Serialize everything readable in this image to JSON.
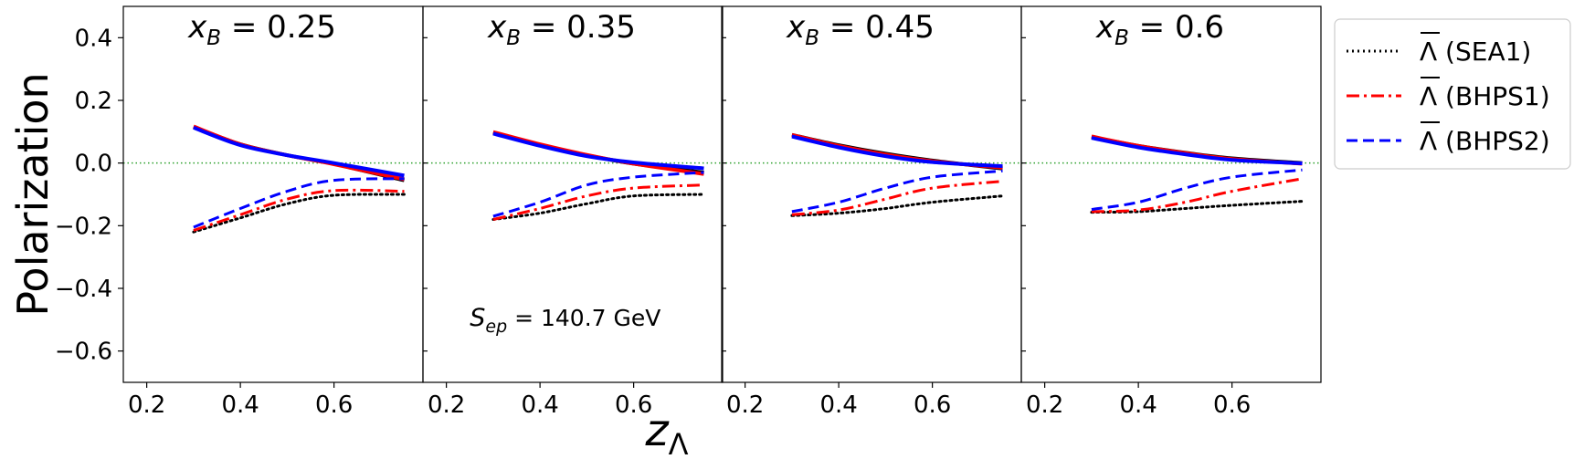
{
  "chart_data": {
    "type": "line",
    "ylabel": "Polarization",
    "xlabel": "z_Λ",
    "xlim": [
      0.15,
      0.79
    ],
    "ylim": [
      -0.7,
      0.5
    ],
    "xticks": [
      0.2,
      0.4,
      0.6
    ],
    "xtick_labels": [
      "0.2",
      "0.4",
      "0.6"
    ],
    "yticks": [
      -0.6,
      -0.4,
      -0.2,
      0.0,
      0.2,
      0.4
    ],
    "ytick_labels": [
      "−0.6",
      "−0.4",
      "−0.2",
      "0.0",
      "0.2",
      "0.4"
    ],
    "annotation": {
      "main": "S",
      "sub": "ep",
      "rest": " = 140.7 GeV",
      "panel": 1,
      "x": 0.25,
      "y": -0.52
    },
    "reference_line": {
      "y": 0.0,
      "color": "#2ca02c",
      "style": "dotted"
    },
    "legend": {
      "placement": "outside-right",
      "entries": [
        {
          "symbol": "Λ",
          "text": " (SEA1)",
          "color": "#000000",
          "style": "dotted"
        },
        {
          "symbol": "Λ",
          "text": " (BHPS1)",
          "color": "#ff0000",
          "style": "dashdot"
        },
        {
          "symbol": "Λ",
          "text": " (BHPS2)",
          "color": "#0000ff",
          "style": "dashed"
        }
      ]
    },
    "panels": [
      {
        "title_var": "x",
        "title_sub": "B",
        "title_value": " = 0.25",
        "x": [
          0.3,
          0.4,
          0.5,
          0.6,
          0.75
        ],
        "curves": [
          {
            "series": "SEA1 Λ",
            "color": "#000000",
            "style": "solid",
            "values": [
              0.115,
              0.06,
              0.025,
              -0.003,
              -0.055
            ]
          },
          {
            "series": "BHPS1 Λ",
            "color": "#ff0000",
            "style": "solid",
            "values": [
              0.117,
              0.06,
              0.025,
              -0.004,
              -0.052
            ]
          },
          {
            "series": "BHPS2 Λ",
            "color": "#0000ff",
            "style": "solid",
            "values": [
              0.113,
              0.057,
              0.025,
              0.0,
              -0.04
            ]
          },
          {
            "series": "SEA1 anti-Λ",
            "color": "#000000",
            "style": "dotted",
            "values": [
              -0.22,
              -0.175,
              -0.13,
              -0.103,
              -0.1
            ]
          },
          {
            "series": "BHPS1 anti-Λ",
            "color": "#ff0000",
            "style": "dashdot",
            "values": [
              -0.215,
              -0.165,
              -0.115,
              -0.088,
              -0.09
            ]
          },
          {
            "series": "BHPS2 anti-Λ",
            "color": "#0000ff",
            "style": "dashed",
            "values": [
              -0.205,
              -0.145,
              -0.09,
              -0.055,
              -0.05
            ]
          }
        ]
      },
      {
        "title_var": "x",
        "title_sub": "B",
        "title_value": " = 0.35",
        "x": [
          0.3,
          0.4,
          0.5,
          0.6,
          0.75
        ],
        "curves": [
          {
            "series": "SEA1 Λ",
            "color": "#000000",
            "style": "solid",
            "values": [
              0.097,
              0.058,
              0.025,
              -0.002,
              -0.03
            ]
          },
          {
            "series": "BHPS1 Λ",
            "color": "#ff0000",
            "style": "solid",
            "values": [
              0.099,
              0.06,
              0.026,
              -0.002,
              -0.035
            ]
          },
          {
            "series": "BHPS2 Λ",
            "color": "#0000ff",
            "style": "solid",
            "values": [
              0.094,
              0.055,
              0.022,
              0.002,
              -0.017
            ]
          },
          {
            "series": "SEA1 anti-Λ",
            "color": "#000000",
            "style": "dotted",
            "values": [
              -0.18,
              -0.16,
              -0.13,
              -0.105,
              -0.1
            ]
          },
          {
            "series": "BHPS1 anti-Λ",
            "color": "#ff0000",
            "style": "dashdot",
            "values": [
              -0.18,
              -0.145,
              -0.105,
              -0.08,
              -0.07
            ]
          },
          {
            "series": "BHPS2 anti-Λ",
            "color": "#0000ff",
            "style": "dashed",
            "values": [
              -0.17,
              -0.125,
              -0.07,
              -0.045,
              -0.03
            ]
          }
        ]
      },
      {
        "title_var": "x",
        "title_sub": "B",
        "title_value": " = 0.45",
        "x": [
          0.3,
          0.4,
          0.5,
          0.6,
          0.75
        ],
        "curves": [
          {
            "series": "SEA1 Λ",
            "color": "#000000",
            "style": "solid",
            "values": [
              0.09,
              0.057,
              0.03,
              0.008,
              -0.018
            ]
          },
          {
            "series": "BHPS1 Λ",
            "color": "#ff0000",
            "style": "solid",
            "values": [
              0.09,
              0.055,
              0.027,
              0.006,
              -0.015
            ]
          },
          {
            "series": "BHPS2 Λ",
            "color": "#0000ff",
            "style": "solid",
            "values": [
              0.085,
              0.05,
              0.022,
              0.003,
              -0.01
            ]
          },
          {
            "series": "SEA1 anti-Λ",
            "color": "#000000",
            "style": "dotted",
            "values": [
              -0.168,
              -0.16,
              -0.145,
              -0.125,
              -0.105
            ]
          },
          {
            "series": "BHPS1 anti-Λ",
            "color": "#ff0000",
            "style": "dashdot",
            "values": [
              -0.165,
              -0.15,
              -0.115,
              -0.08,
              -0.058
            ]
          },
          {
            "series": "BHPS2 anti-Λ",
            "color": "#0000ff",
            "style": "dashed",
            "values": [
              -0.155,
              -0.125,
              -0.08,
              -0.045,
              -0.025
            ]
          }
        ]
      },
      {
        "title_var": "x",
        "title_sub": "B",
        "title_value": " = 0.6",
        "x": [
          0.3,
          0.4,
          0.5,
          0.6,
          0.75
        ],
        "curves": [
          {
            "series": "SEA1 Λ",
            "color": "#000000",
            "style": "solid",
            "values": [
              0.083,
              0.055,
              0.033,
              0.015,
              0.0
            ]
          },
          {
            "series": "BHPS1 Λ",
            "color": "#ff0000",
            "style": "solid",
            "values": [
              0.085,
              0.055,
              0.032,
              0.013,
              -0.002
            ]
          },
          {
            "series": "BHPS2 Λ",
            "color": "#0000ff",
            "style": "solid",
            "values": [
              0.08,
              0.05,
              0.028,
              0.01,
              -0.001
            ]
          },
          {
            "series": "SEA1 anti-Λ",
            "color": "#000000",
            "style": "dotted",
            "values": [
              -0.157,
              -0.155,
              -0.145,
              -0.135,
              -0.122
            ]
          },
          {
            "series": "BHPS1 anti-Λ",
            "color": "#ff0000",
            "style": "dashdot",
            "values": [
              -0.155,
              -0.15,
              -0.125,
              -0.09,
              -0.05
            ]
          },
          {
            "series": "BHPS2 anti-Λ",
            "color": "#0000ff",
            "style": "dashed",
            "values": [
              -0.148,
              -0.125,
              -0.08,
              -0.045,
              -0.022
            ]
          }
        ]
      }
    ]
  }
}
